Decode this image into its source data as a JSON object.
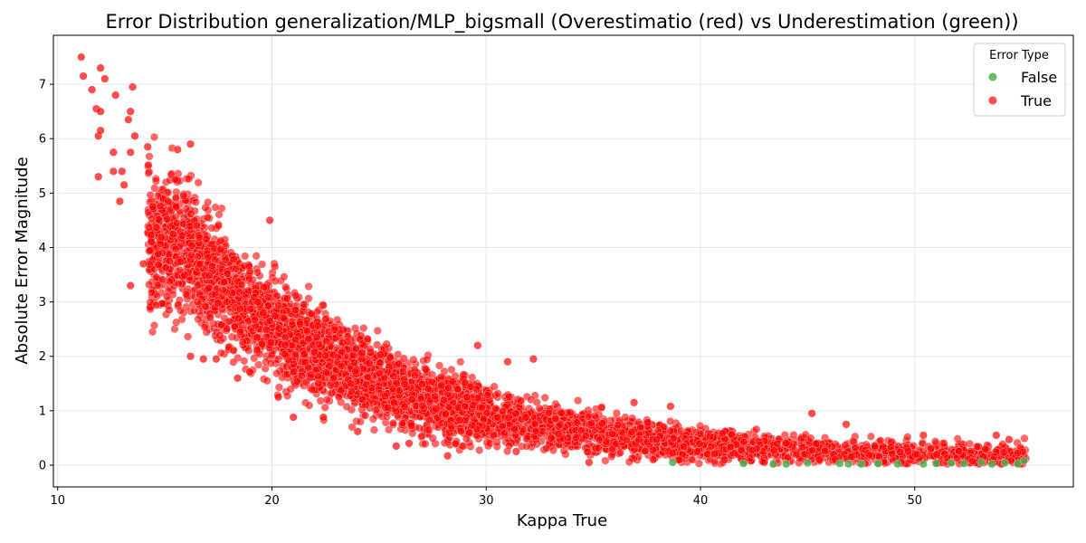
{
  "chart_data": {
    "type": "scatter",
    "title": "Error Distribution generalization/MLP_bigsmall (Overestimatio (red) vs Underestimation (green))",
    "xlabel": "Kappa True",
    "ylabel": "Absolute Error Magnitude",
    "xlim": [
      9.8,
      57.4
    ],
    "ylim": [
      -0.4,
      7.9
    ],
    "xticks": [
      10,
      20,
      30,
      40,
      50
    ],
    "yticks": [
      0,
      1,
      2,
      3,
      4,
      5,
      6,
      7
    ],
    "grid": true,
    "legend": {
      "title": "Error Type",
      "placement": "top-right",
      "entries": [
        {
          "label": "False",
          "color": "#4caf50"
        },
        {
          "label": "True",
          "color": "#ff0000"
        }
      ]
    },
    "series": [
      {
        "name": "True",
        "color": "#ff0000",
        "description": "Overestimation errors; dense band decaying from ~4.5 at kappa 16 to ~0.2 at kappa 55",
        "points": [
          [
            11.1,
            7.5
          ],
          [
            11.2,
            7.15
          ],
          [
            11.6,
            6.9
          ],
          [
            12.0,
            7.3
          ],
          [
            12.2,
            7.1
          ],
          [
            11.8,
            6.55
          ],
          [
            12.0,
            6.5
          ],
          [
            12.7,
            6.8
          ],
          [
            13.5,
            6.95
          ],
          [
            13.4,
            6.5
          ],
          [
            13.3,
            6.35
          ],
          [
            13.6,
            6.05
          ],
          [
            11.9,
            6.05
          ],
          [
            12.0,
            6.15
          ],
          [
            12.6,
            5.75
          ],
          [
            13.4,
            5.75
          ],
          [
            14.2,
            5.85
          ],
          [
            16.2,
            5.9
          ],
          [
            15.6,
            5.8
          ],
          [
            11.9,
            5.3
          ],
          [
            12.6,
            5.4
          ],
          [
            13.0,
            5.4
          ],
          [
            13.1,
            5.15
          ],
          [
            12.9,
            4.85
          ],
          [
            13.4,
            3.3
          ],
          [
            14.0,
            3.7
          ],
          [
            15.1,
            3.1
          ],
          [
            15.2,
            2.85
          ],
          [
            16.2,
            2.0
          ],
          [
            16.8,
            1.95
          ],
          [
            17.4,
            1.95
          ],
          [
            18.4,
            1.6
          ],
          [
            19.9,
            4.5
          ],
          [
            20.3,
            1.25
          ],
          [
            21.0,
            0.88
          ],
          [
            22.4,
            0.88
          ],
          [
            24.0,
            0.62
          ],
          [
            25.8,
            0.35
          ],
          [
            26.4,
            0.4
          ],
          [
            28.2,
            0.17
          ],
          [
            31.4,
            0.25
          ],
          [
            34.8,
            0.05
          ],
          [
            29.6,
            2.2
          ],
          [
            31.0,
            1.9
          ],
          [
            32.2,
            1.95
          ],
          [
            36.9,
            1.15
          ],
          [
            38.6,
            1.08
          ],
          [
            45.2,
            0.95
          ],
          [
            46.8,
            0.75
          ],
          [
            48.4,
            0.45
          ],
          [
            50.4,
            0.55
          ],
          [
            53.8,
            0.55
          ],
          [
            54.4,
            0.47
          ]
        ]
      },
      {
        "name": "False",
        "color": "#4caf50",
        "description": "Underestimation errors; sparse points near zero between kappa 38 and 55",
        "points": [
          [
            38.7,
            0.05
          ],
          [
            42.0,
            0.03
          ],
          [
            43.4,
            0.02
          ],
          [
            44.0,
            0.02
          ],
          [
            45.0,
            0.04
          ],
          [
            46.5,
            0.03
          ],
          [
            46.9,
            0.02
          ],
          [
            47.5,
            0.02
          ],
          [
            48.3,
            0.03
          ],
          [
            49.2,
            0.02
          ],
          [
            50.4,
            0.02
          ],
          [
            51.0,
            0.03
          ],
          [
            51.7,
            0.04
          ],
          [
            52.3,
            0.03
          ],
          [
            53.1,
            0.05
          ],
          [
            53.6,
            0.02
          ],
          [
            54.2,
            0.04
          ],
          [
            54.8,
            0.03
          ],
          [
            55.1,
            0.08
          ]
        ]
      }
    ]
  }
}
